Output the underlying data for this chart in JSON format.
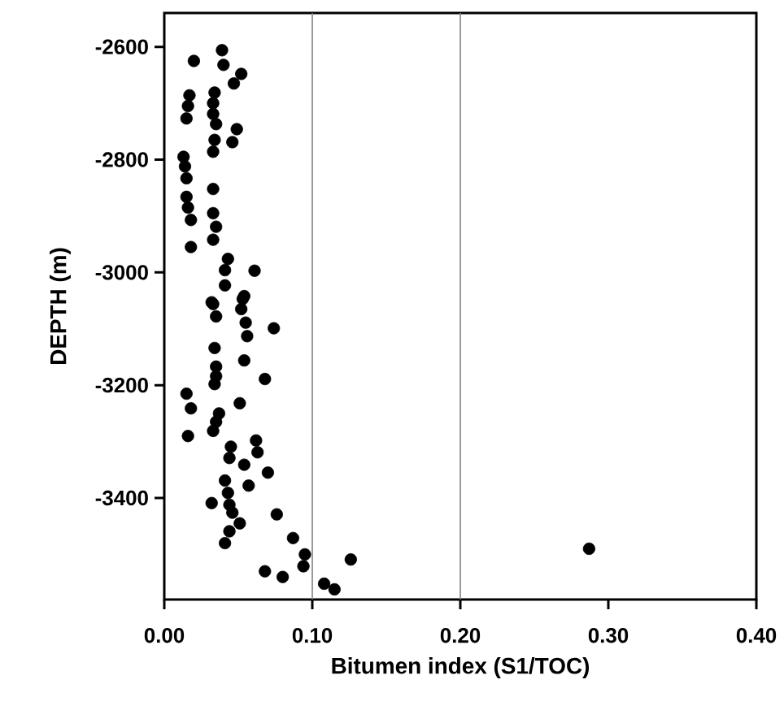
{
  "chart_data": {
    "type": "scatter",
    "xlabel": "Bitumen index (S1/TOC)",
    "ylabel": "DEPTH    (m)",
    "xlim": [
      0,
      0.4
    ],
    "ylim": [
      -3580,
      -2540
    ],
    "xticks": [
      {
        "value": 0,
        "label": "0.00"
      },
      {
        "value": 0.1,
        "label": "0.10"
      },
      {
        "value": 0.2,
        "label": "0.20"
      },
      {
        "value": 0.3,
        "label": "0.30"
      },
      {
        "value": 0.4,
        "label": "0.40"
      }
    ],
    "yticks": [
      -3400,
      -3200,
      -3000,
      -2800,
      -2600
    ],
    "marker": "circle",
    "grid": false,
    "ref_lines": [
      {
        "axis": "x",
        "value": 0.1,
        "color": "#808080"
      },
      {
        "axis": "x",
        "value": 0.2,
        "color": "#808080"
      }
    ],
    "series": [
      {
        "color": "#000000",
        "x": [
          0.02,
          0.039,
          0.04,
          0.052,
          0.047,
          0.017,
          0.034,
          0.016,
          0.033,
          0.015,
          0.033,
          0.035,
          0.049,
          0.046,
          0.034,
          0.033,
          0.013,
          0.014,
          0.015,
          0.033,
          0.015,
          0.016,
          0.018,
          0.033,
          0.035,
          0.033,
          0.018,
          0.043,
          0.041,
          0.061,
          0.041,
          0.054,
          0.032,
          0.033,
          0.053,
          0.035,
          0.052,
          0.055,
          0.056,
          0.074,
          0.034,
          0.054,
          0.035,
          0.035,
          0.034,
          0.068,
          0.015,
          0.018,
          0.051,
          0.037,
          0.035,
          0.033,
          0.016,
          0.045,
          0.062,
          0.044,
          0.063,
          0.054,
          0.07,
          0.041,
          0.057,
          0.043,
          0.032,
          0.044,
          0.046,
          0.051,
          0.044,
          0.041,
          0.076,
          0.087,
          0.095,
          0.094,
          0.068,
          0.08,
          0.108,
          0.115,
          0.126,
          0.287
        ],
        "values": [
          -2625,
          -2606,
          -2632,
          -2648,
          -2665,
          -2686,
          -2681,
          -2705,
          -2700,
          -2727,
          -2719,
          -2737,
          -2746,
          -2769,
          -2765,
          -2786,
          -2795,
          -2812,
          -2833,
          -2852,
          -2866,
          -2885,
          -2907,
          -2895,
          -2919,
          -2942,
          -2955,
          -2976,
          -2996,
          -2997,
          -3023,
          -3042,
          -3053,
          -3056,
          -3047,
          -3078,
          -3065,
          -3089,
          -3113,
          -3099,
          -3134,
          -3156,
          -3167,
          -3184,
          -3198,
          -3189,
          -3215,
          -3241,
          -3232,
          -3250,
          -3265,
          -3281,
          -3290,
          -3309,
          -3298,
          -3329,
          -3319,
          -3341,
          -3355,
          -3369,
          -3378,
          -3391,
          -3409,
          -3412,
          -3426,
          -3445,
          -3459,
          -3480,
          -3429,
          -3471,
          -3500,
          -3521,
          -3530,
          -3540,
          -3552,
          -3562,
          -3509,
          -3490
        ]
      }
    ]
  }
}
